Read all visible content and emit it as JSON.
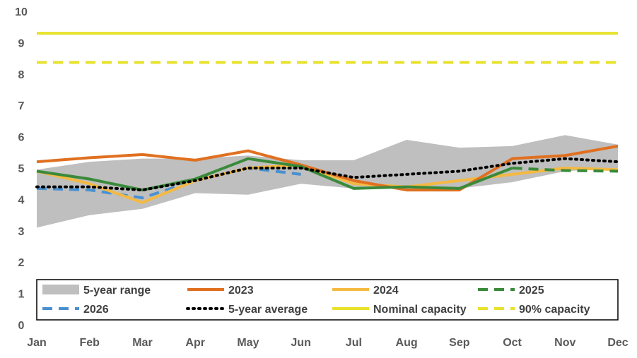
{
  "chart_data": {
    "type": "line",
    "title": "",
    "xlabel": "",
    "ylabel": "",
    "categories": [
      "Jan",
      "Feb",
      "Mar",
      "Apr",
      "May",
      "Jun",
      "Jul",
      "Aug",
      "Sep",
      "Oct",
      "Nov",
      "Dec"
    ],
    "ylim": [
      0,
      10
    ],
    "yticks": [
      "0",
      "1",
      "2",
      "3",
      "4",
      "5",
      "6",
      "7",
      "8",
      "9",
      "10"
    ],
    "grid": false,
    "legend_position": "bottom-inside",
    "range": {
      "name": "5-year range",
      "color": "#bfbfbf",
      "low": [
        3.1,
        3.5,
        3.7,
        4.2,
        4.15,
        4.5,
        4.35,
        4.35,
        4.35,
        4.55,
        4.9,
        5.0
      ],
      "high": [
        4.95,
        5.2,
        5.3,
        5.3,
        5.4,
        5.25,
        5.25,
        5.9,
        5.65,
        5.7,
        6.05,
        5.75
      ]
    },
    "series": [
      {
        "name": "2023",
        "color": "#e07020",
        "dash": "solid",
        "values": [
          5.2,
          5.33,
          5.43,
          5.25,
          5.55,
          5.1,
          4.6,
          4.3,
          4.3,
          5.3,
          5.4,
          5.7
        ]
      },
      {
        "name": "2024",
        "color": "#f4b942",
        "dash": "solid",
        "values": [
          4.9,
          4.5,
          3.9,
          4.6,
          5.0,
          5.1,
          4.5,
          4.4,
          4.6,
          4.8,
          5.0,
          4.95
        ]
      },
      {
        "name": "2025",
        "color": "#3a8a3a",
        "dash": "solid",
        "dash_from_index": 10,
        "values": [
          4.9,
          4.65,
          4.3,
          4.65,
          5.3,
          5.05,
          4.35,
          4.4,
          4.35,
          5.0,
          4.92,
          4.9
        ]
      },
      {
        "name": "2026",
        "color": "#4a90d0",
        "dash": "dashed",
        "values": [
          4.35,
          4.3,
          4.05,
          4.6,
          5.0,
          4.8,
          null,
          null,
          null,
          null,
          null,
          null
        ]
      },
      {
        "name": "5-year average",
        "color": "#000000",
        "dash": "dotted",
        "values": [
          4.4,
          4.4,
          4.3,
          4.6,
          5.0,
          5.0,
          4.7,
          4.8,
          4.9,
          5.15,
          5.3,
          5.2
        ]
      },
      {
        "name": "Nominal capacity",
        "color": "#e8e22c",
        "dash": "solid",
        "values": [
          9.3,
          9.3,
          9.3,
          9.3,
          9.3,
          9.3,
          9.3,
          9.3,
          9.3,
          9.3,
          9.3,
          9.3
        ]
      },
      {
        "name": "90% capacity",
        "color": "#e8e22c",
        "dash": "dashed",
        "values": [
          8.37,
          8.37,
          8.37,
          8.37,
          8.37,
          8.37,
          8.37,
          8.37,
          8.37,
          8.37,
          8.37,
          8.37
        ]
      }
    ],
    "legend": [
      {
        "label": "5-year range",
        "key": "range"
      },
      {
        "label": "2023",
        "key": "2023"
      },
      {
        "label": "2024",
        "key": "2024"
      },
      {
        "label": "2025",
        "key": "2025"
      },
      {
        "label": "2026",
        "key": "2026"
      },
      {
        "label": "5-year average",
        "key": "5-year average"
      },
      {
        "label": "Nominal capacity",
        "key": "Nominal capacity"
      },
      {
        "label": "90% capacity",
        "key": "90% capacity"
      }
    ]
  }
}
